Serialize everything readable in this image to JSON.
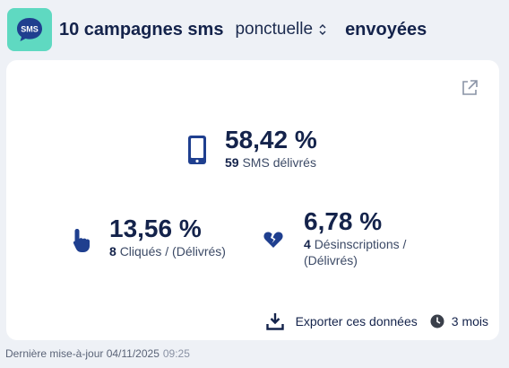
{
  "header": {
    "badge_text": "SMS",
    "title": "10 campagnes sms",
    "select_value": "ponctuelle",
    "suffix": "envoyées"
  },
  "metrics": {
    "delivered": {
      "value": "58,42 %",
      "count": "59",
      "label": "SMS délivrés"
    },
    "clicks": {
      "value": "13,56 %",
      "count": "8",
      "label": "Cliqués / (Délivrés)"
    },
    "unsubscribes": {
      "value": "6,78 %",
      "count": "4",
      "label": "Désinscriptions / (Délivrés)"
    }
  },
  "actions": {
    "export_label": "Exporter ces données",
    "period_label": "3 mois"
  },
  "footer": {
    "updated_label": "Dernière mise-à-jour 04/11/2025",
    "updated_time": "09:25"
  },
  "colors": {
    "accent_teal": "#5fd9c1",
    "navy": "#14234b",
    "icon_blue": "#1f3f8f",
    "background": "#eef1f6"
  },
  "icons": [
    "sms-icon",
    "chevron-updown-icon",
    "external-link-icon",
    "smartphone-icon",
    "pointing-hand-icon",
    "broken-heart-icon",
    "download-icon",
    "clock-icon"
  ]
}
